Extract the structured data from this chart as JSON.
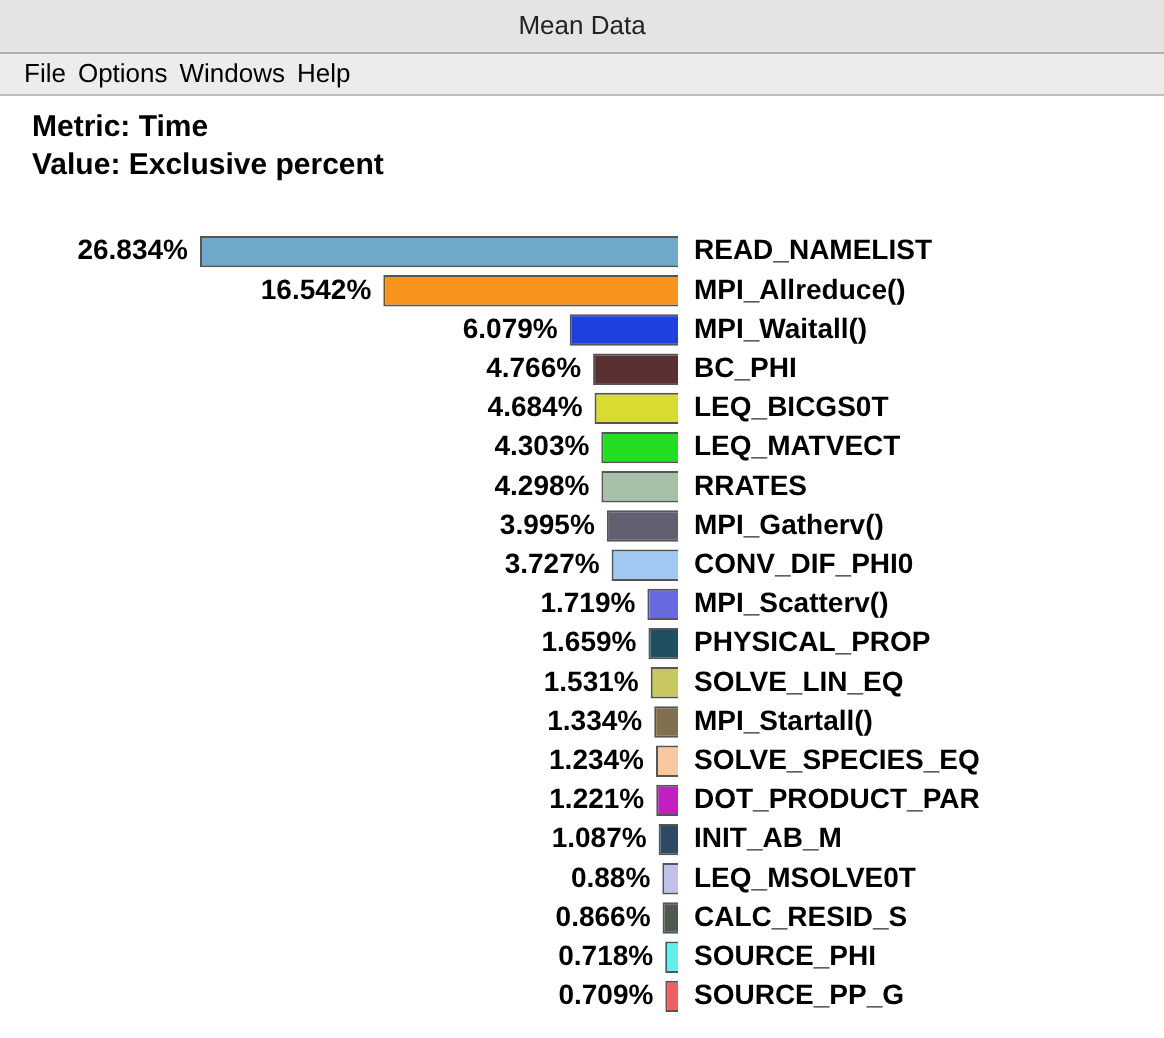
{
  "chart_data": {
    "type": "bar",
    "orientation": "horizontal",
    "title": "Metric: Time",
    "subtitle": "Value: Exclusive percent",
    "annotations": [
      "Mean Data",
      "File",
      "Options",
      "Windows",
      "Help"
    ],
    "categories": [
      "READ_NAMELIST",
      "MPI_Allreduce()",
      "MPI_Waitall()",
      "BC_PHI",
      "LEQ_BICGS0T",
      "LEQ_MATVECT",
      "RRATES",
      "MPI_Gatherv()",
      "CONV_DIF_PHI0",
      "MPI_Scatterv()",
      "PHYSICAL_PROP",
      "SOLVE_LIN_EQ",
      "MPI_Startall()",
      "SOLVE_SPECIES_EQ",
      "DOT_PRODUCT_PAR",
      "INIT_AB_M",
      "LEQ_MSOLVE0T",
      "CALC_RESID_S",
      "SOURCE_PHI",
      "SOURCE_PP_G"
    ],
    "values": [
      26.834,
      16.542,
      6.079,
      4.766,
      4.684,
      4.303,
      4.298,
      3.995,
      3.727,
      1.719,
      1.659,
      1.531,
      1.334,
      1.234,
      1.221,
      1.087,
      0.88,
      0.866,
      0.718,
      0.709
    ],
    "value_labels": [
      "26.834%",
      "16.542%",
      "6.079%",
      "4.766%",
      "4.684%",
      "4.303%",
      "4.298%",
      "3.995%",
      "3.727%",
      "1.719%",
      "1.659%",
      "1.531%",
      "1.334%",
      "1.234%",
      "1.221%",
      "1.087%",
      "0.88%",
      "0.866%",
      "0.718%",
      "0.709%"
    ],
    "colors": [
      "#6fa8c8",
      "#f7941d",
      "#1f3fe0",
      "#5a3030",
      "#d8dc30",
      "#22dd22",
      "#a8c0a8",
      "#606070",
      "#a0c8f0",
      "#6a6ae0",
      "#205060",
      "#c8c860",
      "#807050",
      "#f8c8a0",
      "#c020c0",
      "#304868",
      "#c0c0e8",
      "#505850",
      "#60f0f0",
      "#f06060"
    ],
    "legend": false
  }
}
